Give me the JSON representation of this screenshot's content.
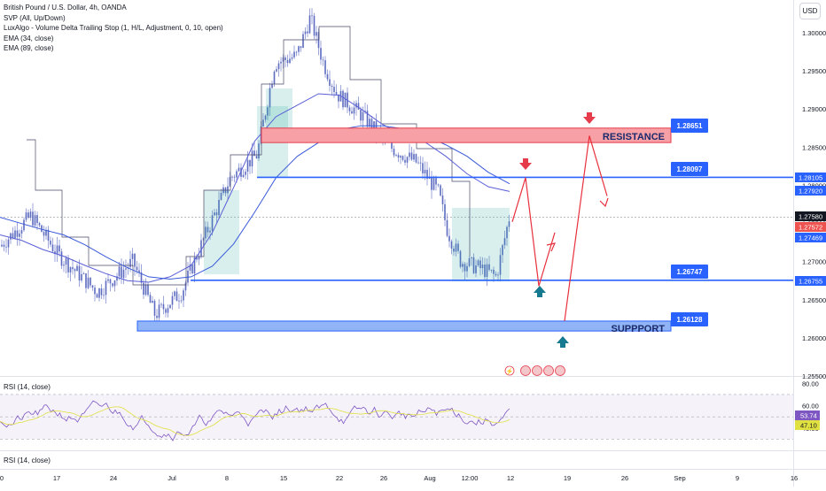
{
  "header": {
    "symbol": "British Pound / U.S. Dollar, 4h, OANDA",
    "indicators": [
      "SVP (All, Up/Down)",
      "LuxAlgo - Volume Delta Trailing Stop (1, H/L, Adjustment, 0, 10, open)",
      "EMA (34, close)",
      "EMA (89, close)"
    ],
    "currency_button": "USD"
  },
  "colors": {
    "up": "#26a69a",
    "down": "#ef5350",
    "candle": "#5c6bc0",
    "level_line": "#2962ff",
    "resistance_zone": "#f7a0a6",
    "support_zone": "#90b4f5",
    "projection": "#e8303d",
    "arrow_up": "#157a8f",
    "arrow_down": "#e53b4b",
    "rsi_line": "#7e57c2",
    "rsi_ma": "#e0e040",
    "ema34": "#5a5fd6",
    "ema89": "#3a5ad8"
  },
  "chart_data": {
    "type": "candlestick",
    "y_axis": {
      "ylim": [
        1.255,
        1.3035
      ],
      "ticks": [
        "1.30000",
        "1.29500",
        "1.29000",
        "1.28500",
        "1.28000",
        "1.27500",
        "1.27000",
        "1.26500",
        "1.26000",
        "1.25500"
      ]
    },
    "x_axis": {
      "ticks": [
        "0",
        "17",
        "24",
        "Jul",
        "8",
        "15",
        "22",
        "26",
        "Aug",
        "12:00",
        "12",
        "19",
        "26",
        "Sep",
        "9",
        "16"
      ]
    },
    "price_tags": [
      {
        "label": "1.28105",
        "value": 1.28105,
        "color": "#2962ff"
      },
      {
        "label": "1.27920",
        "value": 1.2792,
        "color": "#2962ff"
      },
      {
        "label": "1.27580",
        "value": 1.2758,
        "color": "#131722"
      },
      {
        "label": "1.27572",
        "value": 1.27572,
        "color": "#ef5350"
      },
      {
        "label": "1.27469",
        "value": 1.27469,
        "color": "#2962ff"
      },
      {
        "label": "1.26755",
        "value": 1.26755,
        "color": "#2962ff"
      }
    ],
    "levels": [
      {
        "name": "RESISTANCE",
        "label": "1.28651",
        "value": 1.28651
      },
      {
        "name": "",
        "label": "1.28097",
        "value": 1.28097
      },
      {
        "name": "",
        "label": "1.26747",
        "value": 1.26747
      },
      {
        "name": "SUPPPORT",
        "label": "1.26128",
        "value": 1.26128
      }
    ],
    "projection_path": [
      1.2752,
      1.281,
      1.2668,
      1.2738,
      null,
      1.2622,
      1.2865,
      1.2786
    ],
    "ema34": [
      1.2735,
      1.2728,
      1.2716,
      1.2707,
      1.2695,
      1.2684,
      1.2675,
      1.2673,
      1.268,
      1.2695,
      1.2738,
      1.2797,
      1.2858,
      1.289,
      1.2905,
      1.292,
      1.2918,
      1.29,
      1.288,
      1.2866,
      1.2857,
      1.2838,
      1.2815,
      1.2798,
      1.2792
    ],
    "ema89": [
      1.2758,
      1.275,
      1.2742,
      1.2735,
      1.2722,
      1.2706,
      1.2692,
      1.268,
      1.2677,
      1.268,
      1.2694,
      1.2723,
      1.2765,
      1.281,
      1.2838,
      1.2856,
      1.2873,
      1.2878,
      1.2878,
      1.2874,
      1.2866,
      1.2853,
      1.2838,
      1.2817,
      1.2802
    ],
    "rsi": {
      "label": "RSI (14, close)",
      "levels": [
        "80.00",
        "60.00",
        "40.00"
      ],
      "value_tags": [
        {
          "label": "53.74",
          "value": 53.74
        },
        {
          "label": "47.10",
          "value": 47.1
        }
      ],
      "ylim": [
        20,
        85
      ]
    },
    "rsi_second_label": "RSI (14, close)"
  }
}
